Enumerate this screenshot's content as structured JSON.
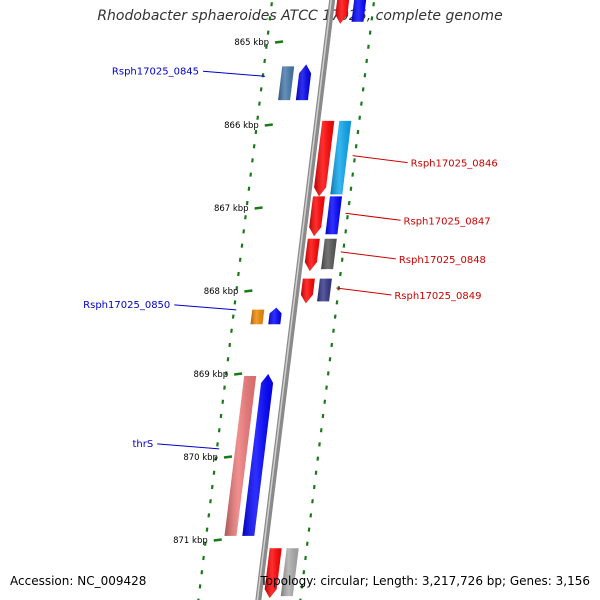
{
  "title": "Rhodobacter sphaeroides ATCC 17025, complete genome",
  "footer": {
    "accession": "Accession: NC_009428",
    "summary": "Topology: circular; Length: 3,217,726 bp; Genes: 3,156"
  },
  "axis": {
    "ticks": [
      {
        "label": "865 kbp",
        "kbp": 865
      },
      {
        "label": "866 kbp",
        "kbp": 866
      },
      {
        "label": "867 kbp",
        "kbp": 867
      },
      {
        "label": "868 kbp",
        "kbp": 868
      },
      {
        "label": "869 kbp",
        "kbp": 869
      },
      {
        "label": "870 kbp",
        "kbp": 870
      },
      {
        "label": "871 kbp",
        "kbp": 871
      }
    ]
  },
  "colors": {
    "axis": "#8a8a8a",
    "tick": "#1a7a1a",
    "forward_label": "#0000cc",
    "reverse_label": "#cc0000"
  },
  "genes": [
    {
      "name": "",
      "strand": "reverse",
      "start_kbp": 864.35,
      "end_kbp": 864.78,
      "gene_color": "#ff0000",
      "cds_color": "#0000ff"
    },
    {
      "name": "Rsph17025_0845",
      "strand": "forward",
      "start_kbp": 865.27,
      "end_kbp": 865.7,
      "gene_color": "#4477aa",
      "cds_color": "#0000ee"
    },
    {
      "name": "Rsph17025_0846",
      "strand": "reverse",
      "start_kbp": 865.95,
      "end_kbp": 866.86,
      "gene_color": "#ff0000",
      "cds_color": "#0aa6ee"
    },
    {
      "name": "Rsph17025_0847",
      "strand": "reverse",
      "start_kbp": 866.86,
      "end_kbp": 867.34,
      "gene_color": "#ff0000",
      "cds_color": "#0000ff"
    },
    {
      "name": "Rsph17025_0848",
      "strand": "reverse",
      "start_kbp": 867.37,
      "end_kbp": 867.76,
      "gene_color": "#ff0000",
      "cds_color": "#555555"
    },
    {
      "name": "Rsph17025_0849",
      "strand": "reverse",
      "start_kbp": 867.85,
      "end_kbp": 868.15,
      "gene_color": "#ff0000",
      "cds_color": "#333388"
    },
    {
      "name": "Rsph17025_0850",
      "strand": "forward",
      "start_kbp": 868.2,
      "end_kbp": 868.4,
      "gene_color": "#ee8800",
      "cds_color": "#0000ff"
    },
    {
      "name": "thrS",
      "strand": "forward",
      "start_kbp": 869.0,
      "end_kbp": 870.95,
      "gene_color": "#ee7777",
      "cds_color": "#0000ff"
    },
    {
      "name": "",
      "strand": "reverse",
      "start_kbp": 871.1,
      "end_kbp": 871.7,
      "gene_color": "#ff0000",
      "cds_color": "#aaaaaa"
    }
  ]
}
